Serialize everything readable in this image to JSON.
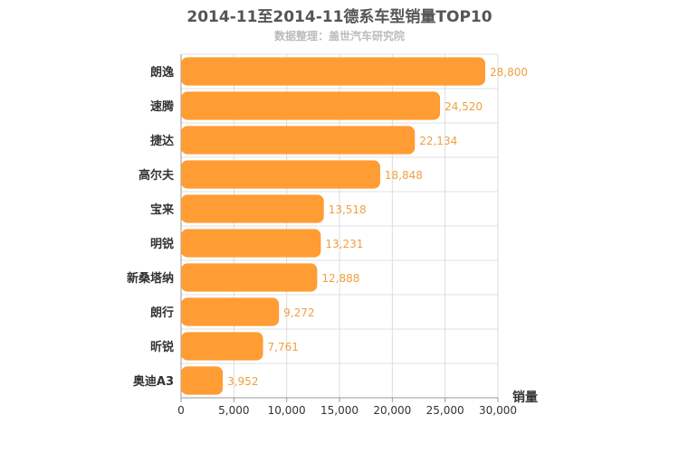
{
  "chart_data": {
    "type": "bar",
    "orientation": "horizontal",
    "title": "2014-11至2014-11德系车型销量TOP10",
    "subtitle": "数据整理：盖世汽车研究院",
    "xlabel": "销量",
    "ylabel": "",
    "xlim": [
      0,
      30000
    ],
    "x_ticks": [
      "0",
      "5,000",
      "10,000",
      "15,000",
      "20,000",
      "25,000",
      "30,000"
    ],
    "grid": true,
    "bar_color": "#ff9c33",
    "label_color": "#f0a040",
    "categories": [
      "朗逸",
      "速腾",
      "捷达",
      "高尔夫",
      "宝来",
      "明锐",
      "新桑塔纳",
      "朗行",
      "昕锐",
      "奥迪A3"
    ],
    "values": [
      28800,
      24520,
      22134,
      18848,
      13518,
      13231,
      12888,
      9272,
      7761,
      3952
    ],
    "value_labels": [
      "28,800",
      "24,520",
      "22,134",
      "18,848",
      "13,518",
      "13,231",
      "12,888",
      "9,272",
      "7,761",
      "3,952"
    ]
  }
}
